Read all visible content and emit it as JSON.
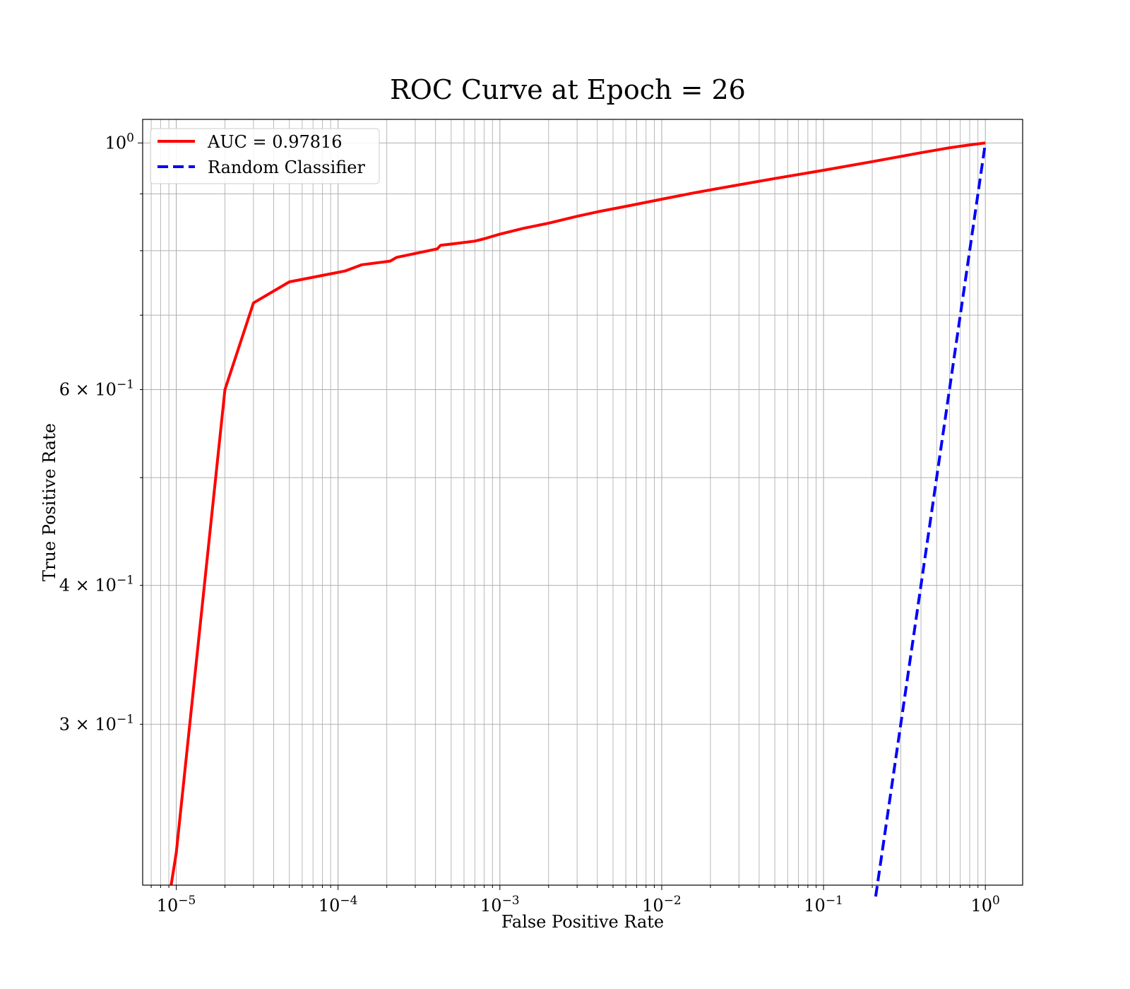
{
  "chart_data": {
    "type": "line",
    "title": "ROC Curve at Epoch = 26",
    "xlabel": "False Positive Rate",
    "ylabel": "True Positive Rate",
    "xscale": "log",
    "yscale": "log",
    "xlim": [
      6.2e-06,
      1.7
    ],
    "ylim": [
      0.215,
      1.05
    ],
    "grid": true,
    "legend_position": "top-left",
    "x_ticks": [
      {
        "value": 1e-05,
        "base": "10",
        "exp": "−5"
      },
      {
        "value": 0.0001,
        "base": "10",
        "exp": "−4"
      },
      {
        "value": 0.001,
        "base": "10",
        "exp": "−3"
      },
      {
        "value": 0.01,
        "base": "10",
        "exp": "−2"
      },
      {
        "value": 0.1,
        "base": "10",
        "exp": "−1"
      },
      {
        "value": 1,
        "base": "10",
        "exp": "0"
      }
    ],
    "y_ticks": [
      {
        "value": 1.0,
        "mant": "",
        "base": "10",
        "exp": "0"
      },
      {
        "value": 0.6,
        "mant": "6 × ",
        "base": "10",
        "exp": "−1"
      },
      {
        "value": 0.4,
        "mant": "4 × ",
        "base": "10",
        "exp": "−1"
      },
      {
        "value": 0.3,
        "mant": "3 × ",
        "base": "10",
        "exp": "−1"
      }
    ],
    "series": [
      {
        "name": "AUC = 0.97816",
        "color": "#ff0000",
        "style": "solid",
        "x": [
          9.3e-06,
          1e-05,
          2e-05,
          3e-05,
          5e-05,
          8e-05,
          0.00011,
          0.00014,
          0.00021,
          0.00023,
          0.00041,
          0.00043,
          0.0005,
          0.0007,
          0.0008,
          0.001,
          0.0014,
          0.002,
          0.003,
          0.004,
          0.006,
          0.01,
          0.016,
          0.03,
          0.05,
          0.1,
          0.2,
          0.4,
          0.6,
          0.8,
          1.0
        ],
        "y": [
          0.215,
          0.23,
          0.6,
          0.718,
          0.75,
          0.76,
          0.767,
          0.777,
          0.783,
          0.789,
          0.803,
          0.809,
          0.811,
          0.816,
          0.82,
          0.828,
          0.838,
          0.847,
          0.859,
          0.867,
          0.877,
          0.89,
          0.902,
          0.917,
          0.929,
          0.945,
          0.962,
          0.98,
          0.99,
          0.996,
          1.0
        ]
      },
      {
        "name": "Random Classifier",
        "color": "#0000ff",
        "style": "dashed",
        "x": [
          0.21,
          1.0
        ],
        "y": [
          0.21,
          1.0
        ]
      }
    ]
  }
}
